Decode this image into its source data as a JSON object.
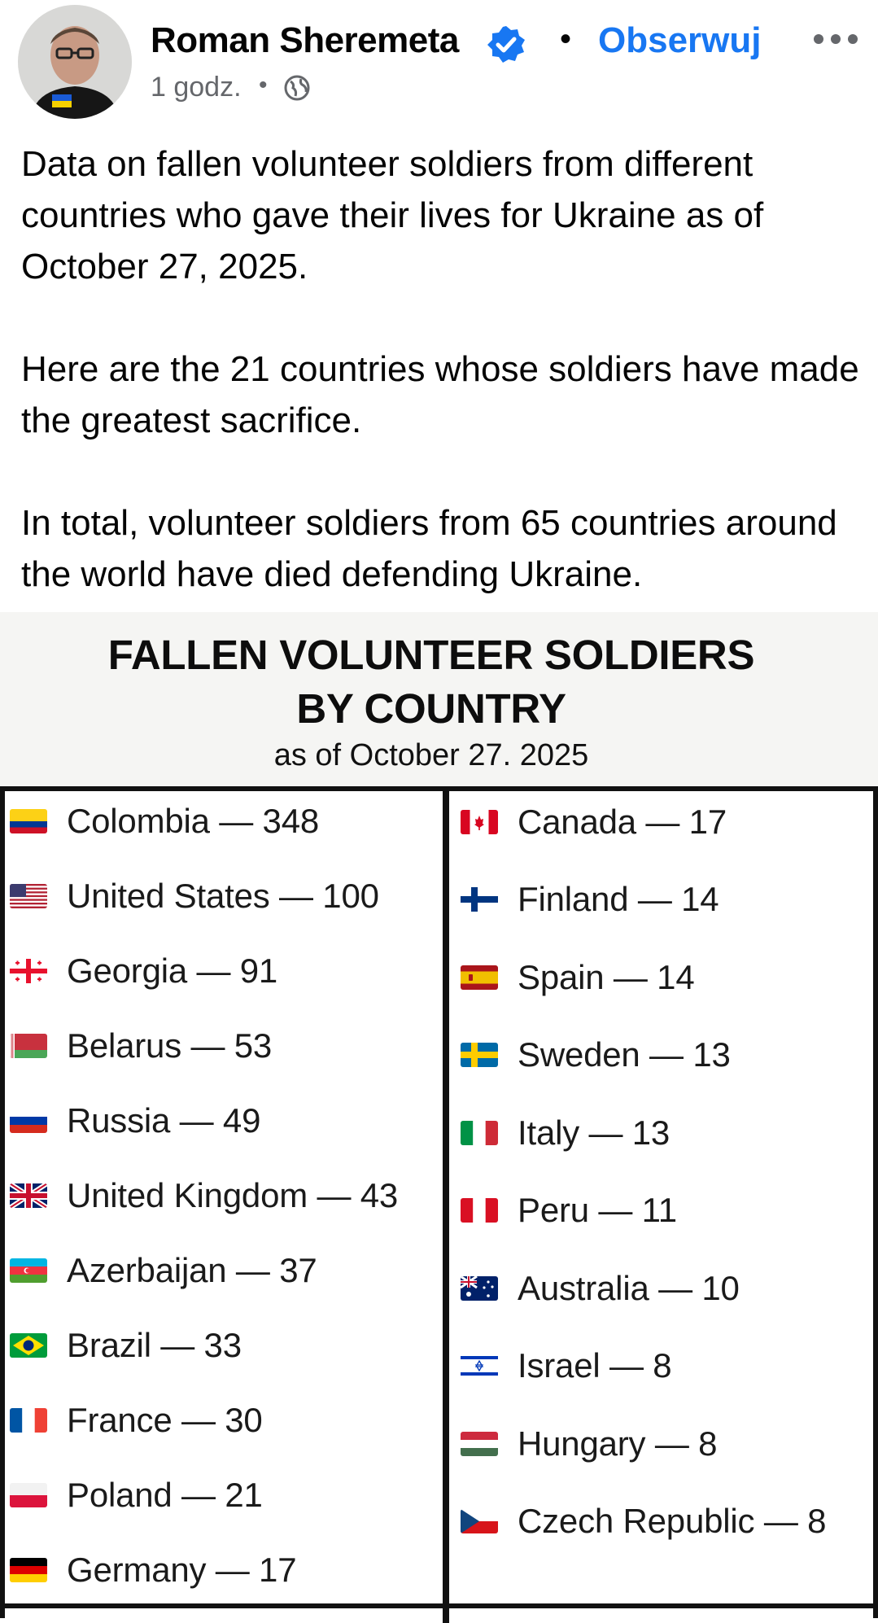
{
  "post": {
    "author": "Roman Sheremeta",
    "follow_label": "Obserwuj",
    "separator": "•",
    "time": "1 godz.",
    "time_separator": "•",
    "paragraphs": [
      "Data on fallen volunteer soldiers from different countries who gave their lives for Ukraine as of October 27, 2025.",
      "Here are the 21 countries whose soldiers have made the greatest sacrifice.",
      "In total, volunteer soldiers from 65 countries around the world have died defending Ukraine."
    ]
  },
  "infographic": {
    "title_line1": "FALLEN VOLUNTEER SOLDIERS",
    "title_line2": "BY COUNTRY",
    "date": "as of October 27. 2025",
    "left_column": [
      {
        "text": "Colombia — 348",
        "flag": "colombia-flag"
      },
      {
        "text": "United States — 100",
        "flag": "united-states-flag"
      },
      {
        "text": "Georgia — 91",
        "flag": "georgia-flag"
      },
      {
        "text": "Belarus — 53",
        "flag": "belarus-flag"
      },
      {
        "text": "Russia — 49",
        "flag": "russia-flag"
      },
      {
        "text": "United Kingdom — 43",
        "flag": "united-kingdom-flag"
      },
      {
        "text": "Azerbaijan — 37",
        "flag": "azerbaijan-flag"
      },
      {
        "text": "Brazil — 33",
        "flag": "brazil-flag"
      },
      {
        "text": "France — 30",
        "flag": "france-flag"
      },
      {
        "text": "Poland — 21",
        "flag": "poland-flag"
      },
      {
        "text": "Germany — 17",
        "flag": "germany-flag"
      }
    ],
    "right_column": [
      {
        "text": "Canada — 17",
        "flag": "canada-flag"
      },
      {
        "text": "Finland — 14",
        "flag": "finland-flag"
      },
      {
        "text": "Spain — 14",
        "flag": "spain-flag"
      },
      {
        "text": "Sweden — 13",
        "flag": "sweden-flag"
      },
      {
        "text": "Italy — 13",
        "flag": "italy-flag"
      },
      {
        "text": "Peru — 11",
        "flag": "peru-flag"
      },
      {
        "text": "Australia — 10",
        "flag": "australia-flag"
      },
      {
        "text": "Israel — 8",
        "flag": "israel-flag"
      },
      {
        "text": "Hungary — 8",
        "flag": "hungary-flag"
      },
      {
        "text": "Czech Republic — 8",
        "flag": "czech-republic-flag"
      }
    ]
  },
  "colors": {
    "link_blue": "#1877f2",
    "meta_gray": "#65676b",
    "text": "#050505"
  }
}
